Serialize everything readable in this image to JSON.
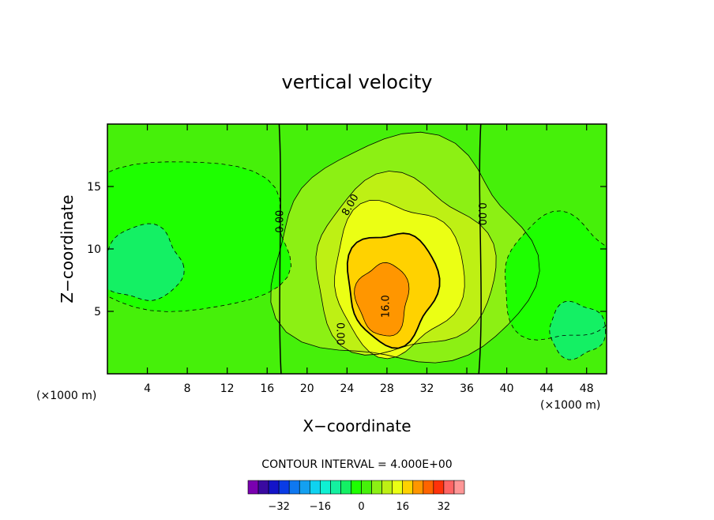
{
  "chart_data": {
    "type": "heatmap",
    "title": "vertical velocity",
    "xlabel": "X−coordinate",
    "ylabel": "Z−coordinate",
    "x_unit": "(×1000 m)",
    "z_unit": "(×1000 m)",
    "xlim": [
      0,
      50
    ],
    "ylim": [
      0,
      20
    ],
    "x_ticks": [
      4,
      8,
      12,
      16,
      20,
      24,
      28,
      32,
      36,
      40,
      44,
      48
    ],
    "y_ticks": [
      5,
      10,
      15
    ],
    "contour_interval_text": "CONTOUR INTERVAL = 4.000E+00",
    "contour_labels": [
      {
        "text": "0.00",
        "x": 17.6,
        "z": 12.2,
        "rotate": -90
      },
      {
        "text": "0.00",
        "x": 37.2,
        "z": 12.8,
        "rotate": 90
      },
      {
        "text": "8.00",
        "x": 24.6,
        "z": 13.4,
        "rotate": -60
      },
      {
        "text": "16.0",
        "x": 28.2,
        "z": 5.4,
        "rotate": -90
      },
      {
        "text": "0.00",
        "x": 23.0,
        "z": 3.2,
        "rotate": 90
      }
    ],
    "legend": {
      "levels": [
        -40,
        -36,
        -32,
        -28,
        -24,
        -20,
        -16,
        -12,
        -8,
        -4,
        0,
        4,
        8,
        12,
        16,
        20,
        24,
        28,
        32,
        36
      ],
      "colors": [
        "#7a00b0",
        "#3a0aa0",
        "#1414c8",
        "#0a3ce6",
        "#0f78f0",
        "#14a0f0",
        "#0fd2f0",
        "#0ff0d2",
        "#14f0a0",
        "#14f064",
        "#1eff00",
        "#46f00a",
        "#8cf014",
        "#bef014",
        "#ebff14",
        "#ffd200",
        "#ff9600",
        "#ff6400",
        "#ff320a",
        "#ff6464",
        "#ff9696"
      ],
      "tick_labels": [
        "−32",
        "−16",
        "0",
        "16",
        "32"
      ],
      "tick_values": [
        -32,
        -16,
        0,
        16,
        32
      ]
    },
    "features": [
      {
        "kind": "updraft",
        "level": 4,
        "cx": 29.5,
        "cz": 9.5,
        "rx": 13,
        "rz": 9
      },
      {
        "kind": "updraft",
        "level": 8,
        "cx": 29.5,
        "cz": 8.5,
        "rx": 9,
        "rz": 7
      },
      {
        "kind": "updraft",
        "level": 12,
        "cx": 29,
        "cz": 7.8,
        "rx": 6.5,
        "rz": 6
      },
      {
        "kind": "updraft",
        "level": 16,
        "cx": 28.5,
        "cz": 7,
        "rx": 4.5,
        "rz": 4.5
      },
      {
        "kind": "updraft",
        "level": 20,
        "cx": 27.6,
        "cz": 6,
        "rx": 2.6,
        "rz": 2.9
      },
      {
        "kind": "downdraft",
        "level": -4,
        "cx": 6,
        "cz": 11,
        "rx": 13,
        "rz": 6
      },
      {
        "kind": "downdraft",
        "level": -8,
        "cx": 3.5,
        "cz": 8.8,
        "rx": 4,
        "rz": 3
      },
      {
        "kind": "downdraft",
        "level": -4,
        "cx": 45.5,
        "cz": 7.5,
        "rx": 6,
        "rz": 5
      },
      {
        "kind": "downdraft",
        "level": -8,
        "cx": 47,
        "cz": 3.5,
        "rx": 2.8,
        "rz": 2.2
      }
    ]
  }
}
